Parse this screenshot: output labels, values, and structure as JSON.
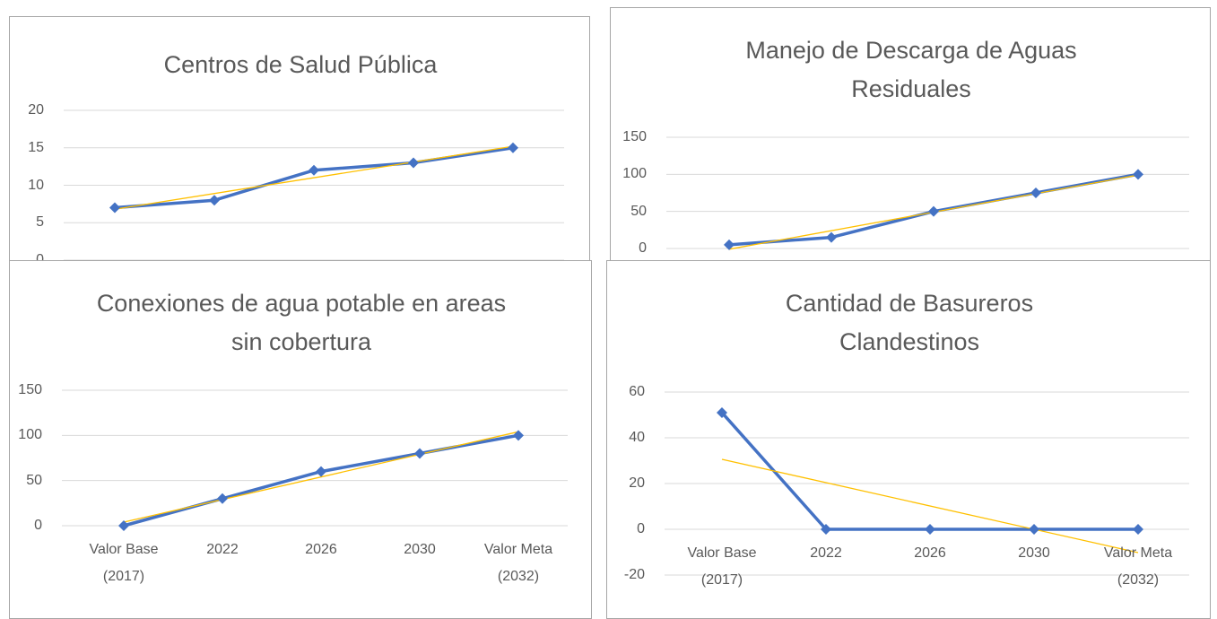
{
  "chart_data": [
    {
      "type": "line",
      "title": "Centros de Salud Pública",
      "values": [
        7,
        8,
        12,
        13,
        15
      ],
      "color": "#4472c4",
      "ylim": [
        0,
        20
      ],
      "yticks": [
        0,
        5,
        10,
        15,
        20
      ],
      "grid": true,
      "trendline": true,
      "trendline_color": "#ffc000"
    },
    {
      "type": "line",
      "title": "Manejo de Descarga de Aguas Residuales",
      "values": [
        5,
        15,
        50,
        75,
        100
      ],
      "color": "#4472c4",
      "ylim": [
        0,
        150
      ],
      "yticks": [
        0,
        50,
        100,
        150
      ],
      "grid": true,
      "trendline": true,
      "trendline_color": "#ffc000"
    },
    {
      "type": "line",
      "title": "Conexiones de agua potable en areas sin cobertura",
      "categories": [
        "Valor Base (2017)",
        "2022",
        "2026",
        "2030",
        "Valor Meta (2032)"
      ],
      "values": [
        0,
        30,
        60,
        80,
        100
      ],
      "color": "#4472c4",
      "ylim": [
        0,
        150
      ],
      "yticks": [
        0,
        50,
        100,
        150
      ],
      "grid": true,
      "trendline": true,
      "trendline_color": "#ffc000"
    },
    {
      "type": "line",
      "title": "Cantidad de Basureros Clandestinos",
      "categories": [
        "Valor Base (2017)",
        "2022",
        "2026",
        "2030",
        "Valor Meta (2032)"
      ],
      "values": [
        51,
        0,
        0,
        0,
        0
      ],
      "color": "#4472c4",
      "ylim": [
        -20,
        60
      ],
      "yticks": [
        -20,
        0,
        20,
        40,
        60
      ],
      "grid": true,
      "trendline": true,
      "trendline_color": "#ffc000"
    }
  ]
}
